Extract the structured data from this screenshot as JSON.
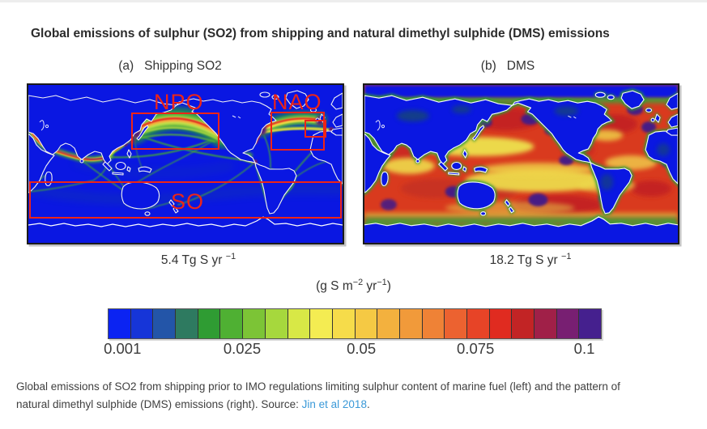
{
  "title": "Global emissions of sulphur (SO2) from shipping and natural dimethyl sulphide (DMS) emissions",
  "panels": [
    {
      "prefix": "(a)",
      "label": "Shipping SO2",
      "total": "5.4 Tg S yr ",
      "total_exp": "−1"
    },
    {
      "prefix": "(b)",
      "label": "DMS",
      "total": "18.2 Tg S yr ",
      "total_exp": "−1"
    }
  ],
  "maps": {
    "so2": {
      "region_labels": [
        "NPO",
        "NAO",
        "SO"
      ]
    }
  },
  "colorbar": {
    "units": {
      "pre": "(g S m",
      "sup1": "−2",
      "mid": " yr",
      "sup2": "−1",
      "post": ")"
    },
    "ticks": [
      "0.001",
      "0.025",
      "0.05",
      "0.075",
      "0.1"
    ],
    "tick_positions_pct": [
      3,
      27.3,
      51.5,
      74.7,
      96.8
    ],
    "colors": [
      "#0b23f2",
      "#1635d8",
      "#2355a8",
      "#2e7a60",
      "#2f9c33",
      "#4fb033",
      "#7cc436",
      "#a6d83d",
      "#d8e846",
      "#f4ec52",
      "#f6dc4a",
      "#f5c944",
      "#f3b13e",
      "#f19a3a",
      "#ef8236",
      "#ec6230",
      "#e74427",
      "#e02b20",
      "#c22425",
      "#a02048",
      "#781f72",
      "#45208e"
    ]
  },
  "caption": {
    "line1": "Global emissions of SO2 from shipping prior to IMO regulations limiting sulphur content of marine fuel (left) and the pattern of",
    "line2": "natural dimethyl sulphide (DMS) emissions (right). Source: ",
    "link": "Jin et al 2018",
    "suffix": "."
  },
  "colors": {
    "accent_red": "#ee2417",
    "ocean_blue": "#0a17e2",
    "link_blue": "#3a99d8",
    "title_text": "#2b2b2b",
    "caption_text": "#3f3f3f"
  },
  "chart_data": [
    {
      "type": "heatmap",
      "panel": "a",
      "title": "Shipping SO2",
      "total_emission": 5.4,
      "total_units": "Tg S yr−1",
      "field_units": "g S m−2 yr−1",
      "colorbar_min": 0.001,
      "colorbar_max": 0.1,
      "colorbar_ticks": [
        0.001,
        0.025,
        0.05,
        0.075,
        0.1
      ],
      "annotated_regions": [
        "NPO",
        "NAO",
        "SO"
      ],
      "pattern": "Ocean mostly near zero (blue); bright bands (0.02–0.1) along major shipping lanes: North Pacific great-circle route between East Asia and North America, North Atlantic between US and Europe, Asia–Malacca–Suez corridor, Chinese coast, Panama, Caribbean and Gibraltar approaches"
    },
    {
      "type": "heatmap",
      "panel": "b",
      "title": "DMS",
      "total_emission": 18.2,
      "total_units": "Tg S yr−1",
      "field_units": "g S m−2 yr−1",
      "colorbar_min": 0.001,
      "colorbar_max": 0.1,
      "colorbar_ticks": [
        0.001,
        0.025,
        0.05,
        0.075,
        0.1
      ],
      "annotated_regions": [],
      "pattern": "High emissions (0.03–0.1, orange–red with purple maxima) over most ice-free oceans, strongest in subtropical gyres and the Southern Ocean; land and polar seas near zero (blue) with green coastal fringes"
    }
  ]
}
